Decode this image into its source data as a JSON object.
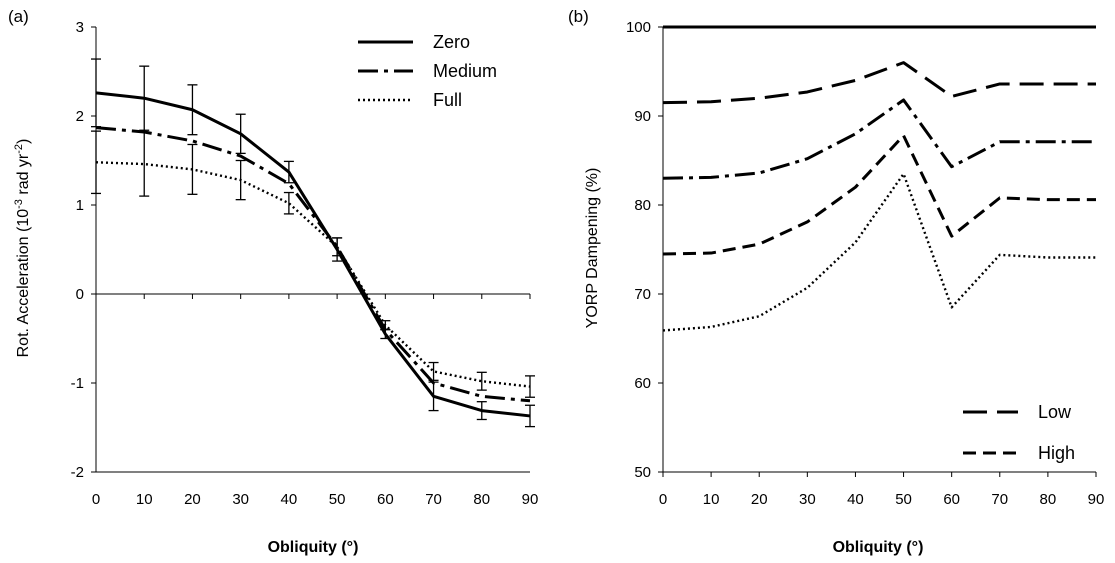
{
  "chart_data": [
    {
      "panel": "(a)",
      "type": "line",
      "xlabel": "Obliquity (°)",
      "ylabel_main": "Rot. Acceleration (10",
      "ylabel_sup1": "-3",
      "ylabel_mid": " rad  yr",
      "ylabel_sup2": "-2",
      "ylabel_end": ")",
      "x": [
        0,
        10,
        20,
        30,
        40,
        50,
        60,
        70,
        80,
        90
      ],
      "xlim": [
        0,
        90
      ],
      "ylim": [
        -2,
        3
      ],
      "xticks": [
        "0",
        "10",
        "20",
        "30",
        "40",
        "50",
        "60",
        "70",
        "80",
        "90"
      ],
      "yticks": [
        "-2",
        "-1",
        "0",
        "1",
        "2",
        "3"
      ],
      "legend_position": "top-right",
      "series": [
        {
          "name": "Zero",
          "dash": "solid",
          "values": [
            2.26,
            2.2,
            2.07,
            1.8,
            1.37,
            0.5,
            -0.45,
            -1.15,
            -1.31,
            -1.37
          ],
          "errors": [
            0.38,
            0.36,
            0.28,
            0.22,
            0.12,
            0.13,
            0.05,
            0.16,
            0.1,
            0.12
          ]
        },
        {
          "name": "Medium",
          "dash": "dashdot",
          "values": [
            1.87,
            1.82,
            1.72,
            1.55,
            1.24,
            0.53,
            -0.4,
            -1.0,
            -1.15,
            -1.2
          ]
        },
        {
          "name": "Full",
          "dash": "dotted",
          "values": [
            1.48,
            1.46,
            1.4,
            1.28,
            1.02,
            0.53,
            -0.35,
            -0.87,
            -0.98,
            -1.04
          ],
          "errors": [
            0.35,
            0.36,
            0.28,
            0.22,
            0.12,
            0.1,
            0.05,
            0.1,
            0.1,
            0.12
          ]
        }
      ]
    },
    {
      "panel": "(b)",
      "type": "line",
      "xlabel": "Obliquity (°)",
      "ylabel": "YORP Dampening (%)",
      "x": [
        0,
        10,
        20,
        30,
        40,
        50,
        60,
        70,
        80,
        90
      ],
      "xlim": [
        0,
        90
      ],
      "ylim": [
        50,
        100
      ],
      "xticks": [
        "0",
        "10",
        "20",
        "30",
        "40",
        "50",
        "60",
        "70",
        "80",
        "90"
      ],
      "yticks": [
        "50",
        "60",
        "70",
        "80",
        "90",
        "100"
      ],
      "legend_position": "bottom-right",
      "series": [
        {
          "name": "",
          "dash": "solid",
          "values": [
            100,
            100,
            100,
            100,
            100,
            100,
            100,
            100,
            100,
            100
          ]
        },
        {
          "name": "Low",
          "dash": "longdash",
          "values": [
            91.5,
            91.6,
            92.0,
            92.7,
            94.0,
            96.0,
            92.2,
            93.6,
            93.6,
            93.6
          ]
        },
        {
          "name": "",
          "dash": "dashdot",
          "values": [
            83.0,
            83.1,
            83.6,
            85.2,
            88.0,
            91.8,
            84.3,
            87.1,
            87.1,
            87.1
          ]
        },
        {
          "name": "High",
          "dash": "dashed",
          "values": [
            74.5,
            74.6,
            75.6,
            78.1,
            82.0,
            87.8,
            76.5,
            80.8,
            80.6,
            80.6
          ]
        },
        {
          "name": "",
          "dash": "dotted",
          "values": [
            65.9,
            66.3,
            67.5,
            70.7,
            75.8,
            83.5,
            68.5,
            74.4,
            74.1,
            74.1
          ]
        }
      ]
    }
  ]
}
